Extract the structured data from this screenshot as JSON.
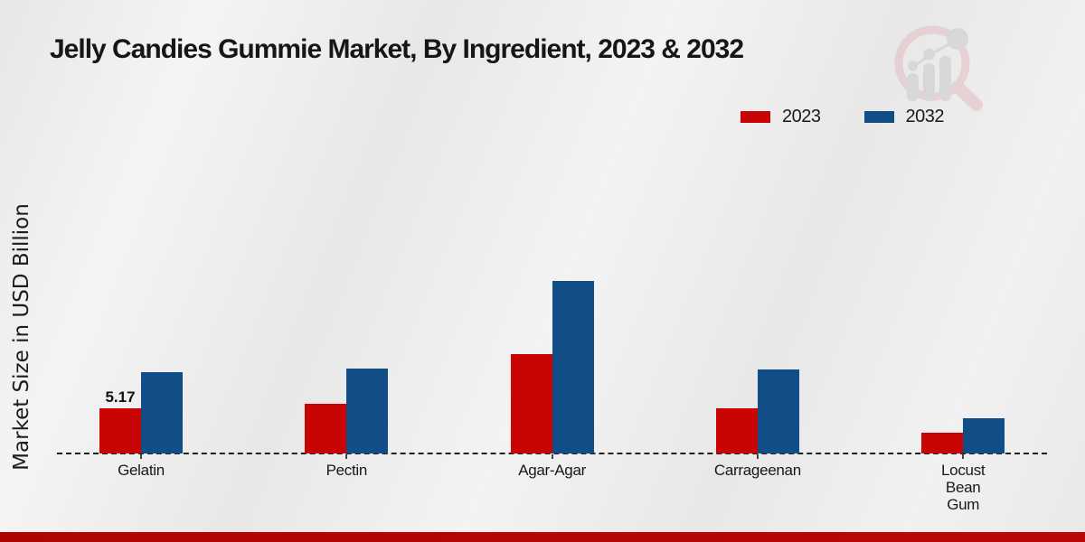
{
  "title": "Jelly Candies Gummie Market, By Ingredient, 2023 & 2032",
  "chart_data": {
    "type": "bar",
    "title": "Jelly Candies Gummie Market, By Ingredient, 2023 & 2032",
    "xlabel": "",
    "ylabel": "Market Size in USD Billion",
    "categories": [
      "Gelatin",
      "Pectin",
      "Agar-Agar",
      "Carrageenan",
      "Locust Bean Gum"
    ],
    "series": [
      {
        "name": "2023",
        "color": "#c80404",
        "values": [
          5.17,
          5.7,
          11.4,
          5.2,
          2.4
        ]
      },
      {
        "name": "2032",
        "color": "#114e87",
        "values": [
          9.3,
          9.7,
          19.8,
          9.6,
          4.0
        ]
      }
    ],
    "data_labels": [
      {
        "series_index": 0,
        "category_index": 0,
        "text": "5.17"
      }
    ],
    "ylim": [
      0,
      20.5
    ],
    "grid": false,
    "baseline_style": "dashed",
    "legend_position": "top-right"
  },
  "legend": {
    "items": [
      {
        "label": "2023",
        "color": "#c80404"
      },
      {
        "label": "2032",
        "color": "#114e87"
      }
    ]
  },
  "watermark": {
    "icon": "magnifier-bar-chart-logo"
  },
  "footer": {
    "bar_color": "#b50606"
  }
}
